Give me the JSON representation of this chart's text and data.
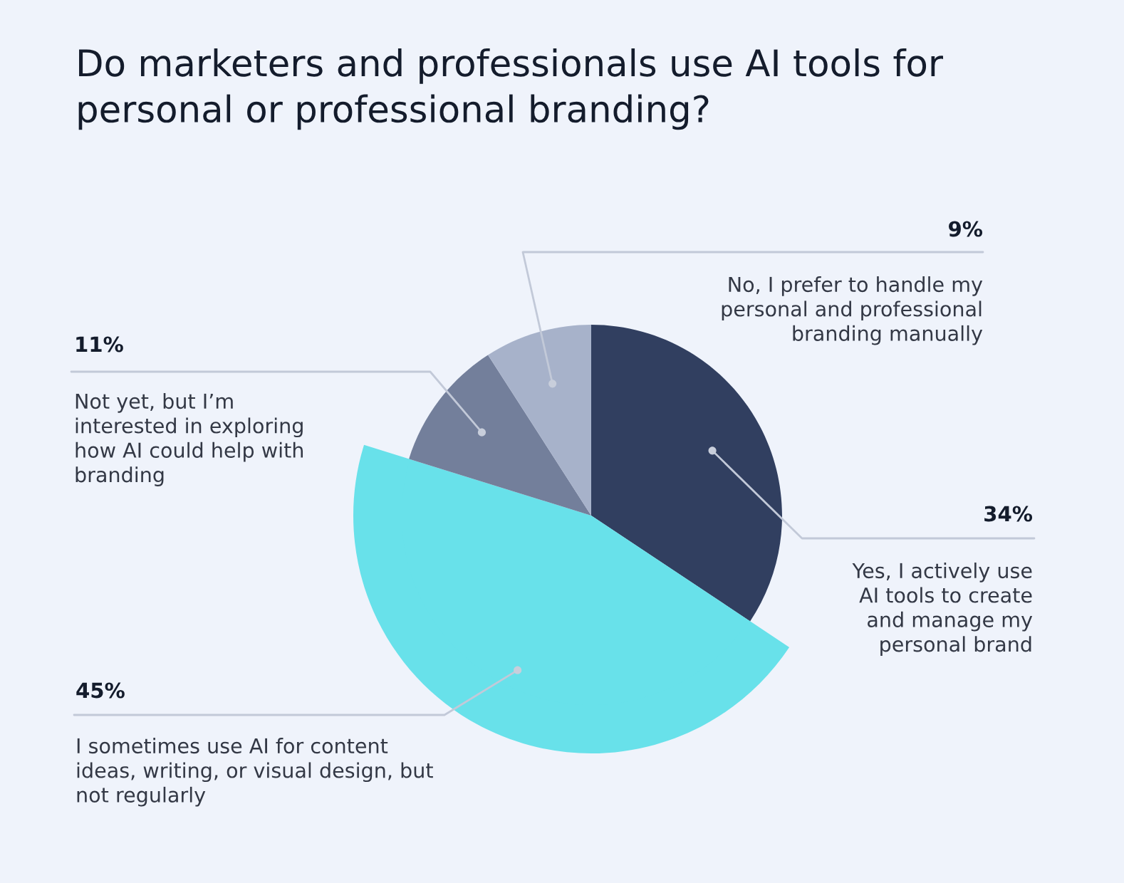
{
  "chart_data": {
    "type": "pie",
    "title": "Do marketers and professionals use AI tools for\npersonal or professional branding?",
    "categories": [
      "Yes, I actively use\nAI tools to create\nand manage my\npersonal brand",
      "I sometimes use AI for content\nideas, writing, or visual design, but\nnot regularly",
      "Not yet, but I’m\ninterested in exploring\nhow AI could help with\nbranding",
      "No, I prefer to handle my\npersonal and professional\nbranding manually"
    ],
    "values": [
      34,
      45,
      11,
      9
    ],
    "colors": [
      "#313f60",
      "#68e1ea",
      "#737f9b",
      "#a7b2ca"
    ],
    "value_labels": [
      "34%",
      "45%",
      "11%",
      "9%"
    ]
  }
}
